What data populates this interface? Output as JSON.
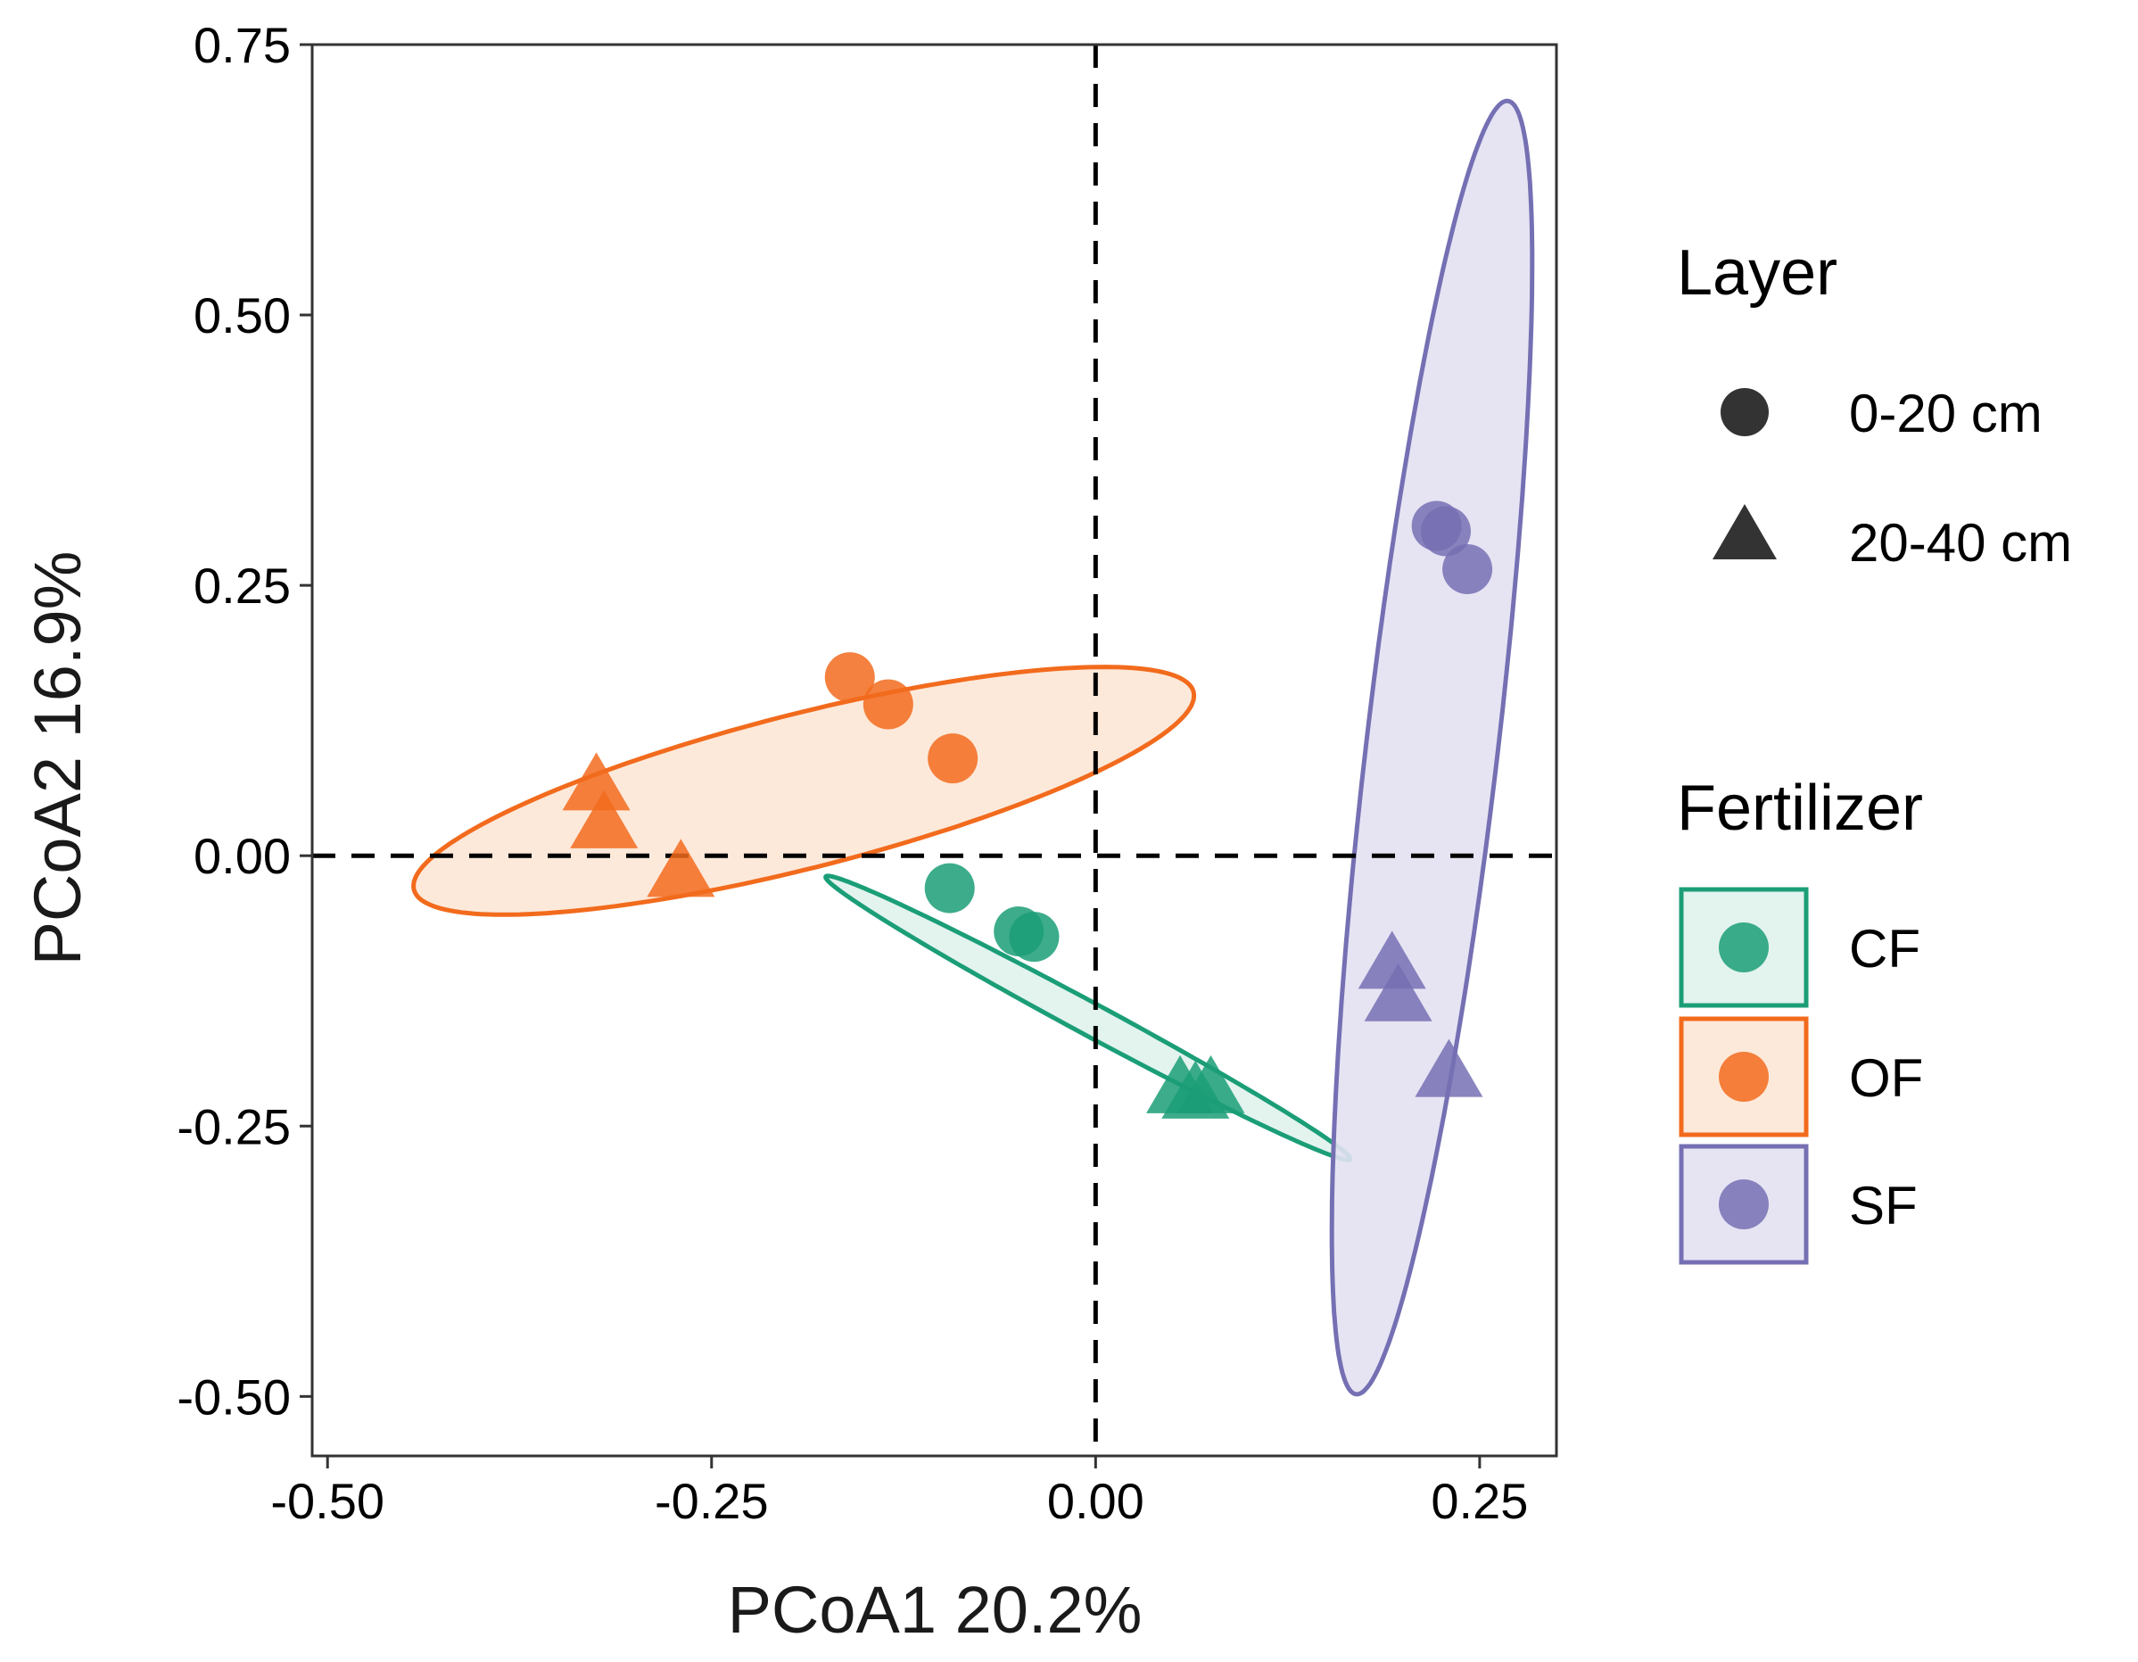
{
  "chart_data": {
    "type": "scatter",
    "title": "",
    "xlabel": "PCoA1 20.2%",
    "ylabel": "PCoA2 16.9%",
    "xlim": [
      -0.51,
      0.3
    ],
    "ylim": [
      -0.555,
      0.75
    ],
    "xticks": [
      -0.5,
      -0.25,
      0.0,
      0.25
    ],
    "xtick_labels": [
      "-0.50",
      "-0.25",
      "0.00",
      "0.25"
    ],
    "yticks": [
      -0.5,
      -0.25,
      0.0,
      0.25,
      0.5,
      0.75
    ],
    "ytick_labels": [
      "-0.50",
      "-0.25",
      "0.00",
      "0.25",
      "0.50",
      "0.75"
    ],
    "grid": false,
    "reference_lines": {
      "x": 0.0,
      "y": 0.0,
      "style": "dashed"
    },
    "legend": {
      "placement": "right",
      "layer_title": "Layer",
      "layer_entries": [
        {
          "label": "0-20 cm",
          "shape": "circle"
        },
        {
          "label": "20-40 cm",
          "shape": "triangle"
        }
      ],
      "fertilizer_title": "Fertilizer",
      "fertilizer_entries": [
        {
          "label": "CF",
          "color": "#1b9e77"
        },
        {
          "label": "OF",
          "color": "#f26b1d"
        },
        {
          "label": "SF",
          "color": "#7570b3"
        }
      ]
    },
    "series": [
      {
        "name": "CF",
        "color": "#1b9e77",
        "fill_color": "#1b9e77",
        "ellipse": {
          "center": [
            -0.005,
            -0.15
          ],
          "semi_axes": [
            0.215,
            0.0135
          ],
          "angle_deg": -37.5
        },
        "points": [
          {
            "x": -0.095,
            "y": -0.03,
            "layer": "0-20 cm"
          },
          {
            "x": -0.05,
            "y": -0.07,
            "layer": "0-20 cm"
          },
          {
            "x": -0.04,
            "y": -0.075,
            "layer": "0-20 cm"
          },
          {
            "x": 0.055,
            "y": -0.215,
            "layer": "20-40 cm"
          },
          {
            "x": 0.065,
            "y": -0.22,
            "layer": "20-40 cm"
          },
          {
            "x": 0.075,
            "y": -0.215,
            "layer": "20-40 cm"
          }
        ]
      },
      {
        "name": "OF",
        "color": "#f26b1d",
        "fill_color": "#fde7d6",
        "ellipse": {
          "center": [
            -0.19,
            0.06
          ],
          "semi_axes": [
            0.27,
            0.069
          ],
          "angle_deg": 20.5
        },
        "points": [
          {
            "x": -0.16,
            "y": 0.165,
            "layer": "0-20 cm"
          },
          {
            "x": -0.135,
            "y": 0.14,
            "layer": "0-20 cm"
          },
          {
            "x": -0.093,
            "y": 0.09,
            "layer": "0-20 cm"
          },
          {
            "x": -0.325,
            "y": 0.065,
            "layer": "20-40 cm"
          },
          {
            "x": -0.32,
            "y": 0.03,
            "layer": "20-40 cm"
          },
          {
            "x": -0.27,
            "y": -0.015,
            "layer": "20-40 cm"
          }
        ]
      },
      {
        "name": "SF",
        "color": "#7570b3",
        "fill_color": "#e3e1f2",
        "ellipse": {
          "center": [
            0.219,
            0.1
          ],
          "semi_axes": [
            0.6,
            0.043
          ],
          "angle_deg": 85.3
        },
        "points": [
          {
            "x": 0.222,
            "y": 0.305,
            "layer": "0-20 cm"
          },
          {
            "x": 0.228,
            "y": 0.3,
            "layer": "0-20 cm"
          },
          {
            "x": 0.242,
            "y": 0.265,
            "layer": "0-20 cm"
          },
          {
            "x": 0.193,
            "y": -0.1,
            "layer": "20-40 cm"
          },
          {
            "x": 0.197,
            "y": -0.13,
            "layer": "20-40 cm"
          },
          {
            "x": 0.23,
            "y": -0.2,
            "layer": "20-40 cm"
          }
        ]
      }
    ]
  }
}
